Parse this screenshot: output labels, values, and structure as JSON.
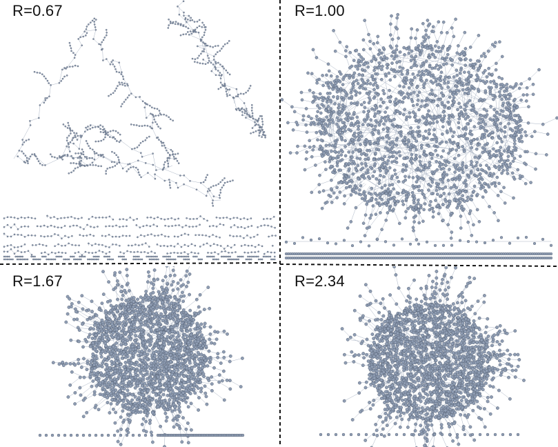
{
  "figure": {
    "panels": [
      {
        "id": "p1",
        "label": "R=0.67"
      },
      {
        "id": "p2",
        "label": "R=1.00"
      },
      {
        "id": "p3",
        "label": "R=1.67"
      },
      {
        "id": "p4",
        "label": "R=2.34"
      }
    ],
    "colors": {
      "node_fill": "#8f9db3",
      "node_stroke": "#4a5568",
      "edge": "#aab4c4",
      "divider": "#111111"
    }
  }
}
